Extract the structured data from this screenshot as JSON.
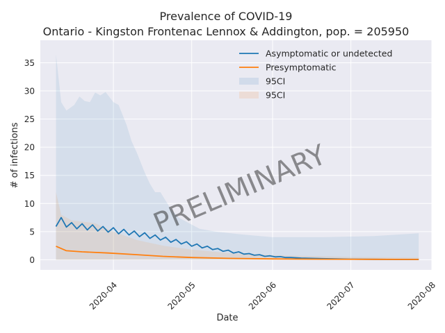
{
  "chart_data": {
    "type": "line",
    "title": "Prevalence of COVID-19",
    "subtitle": "Ontario - Kingston Frontenac Lennox & Addington, pop. = 205950",
    "xlabel": "Date",
    "ylabel": "# of infections",
    "watermark": "PRELIMINARY",
    "grid": true,
    "legend_position": "top-right",
    "x_range": [
      "2020-03-04",
      "2020-08-01"
    ],
    "y_range": [
      -1.8,
      39
    ],
    "x_ticks": [
      "2020-04-01",
      "2020-05-01",
      "2020-06-01",
      "2020-07-01",
      "2020-08-01"
    ],
    "x_tick_labels": [
      "2020-04",
      "2020-05",
      "2020-06",
      "2020-07",
      "2020-08"
    ],
    "y_ticks": [
      0,
      5,
      10,
      15,
      20,
      25,
      30,
      35
    ],
    "legend": [
      {
        "label": "Asymptomatic or undetected",
        "kind": "line",
        "color": "#1f77b4"
      },
      {
        "label": "Presymptomatic",
        "kind": "line",
        "color": "#ff7f0e"
      },
      {
        "label": "95CI",
        "kind": "band",
        "color": "#1f77b4"
      },
      {
        "label": "95CI",
        "kind": "band",
        "color": "#ff7f0e"
      }
    ],
    "series": [
      {
        "name": "Asymptomatic or undetected",
        "color": "#1f77b4",
        "points": [
          [
            "2020-03-10",
            5.9
          ],
          [
            "2020-03-12",
            7.5
          ],
          [
            "2020-03-14",
            5.8
          ],
          [
            "2020-03-16",
            6.6
          ],
          [
            "2020-03-18",
            5.5
          ],
          [
            "2020-03-20",
            6.4
          ],
          [
            "2020-03-22",
            5.3
          ],
          [
            "2020-03-24",
            6.2
          ],
          [
            "2020-03-26",
            5.1
          ],
          [
            "2020-03-28",
            5.9
          ],
          [
            "2020-03-30",
            4.9
          ],
          [
            "2020-04-01",
            5.7
          ],
          [
            "2020-04-03",
            4.6
          ],
          [
            "2020-04-05",
            5.4
          ],
          [
            "2020-04-07",
            4.4
          ],
          [
            "2020-04-09",
            5.1
          ],
          [
            "2020-04-11",
            4.1
          ],
          [
            "2020-04-13",
            4.8
          ],
          [
            "2020-04-15",
            3.8
          ],
          [
            "2020-04-17",
            4.4
          ],
          [
            "2020-04-19",
            3.5
          ],
          [
            "2020-04-21",
            4.0
          ],
          [
            "2020-04-23",
            3.1
          ],
          [
            "2020-04-25",
            3.6
          ],
          [
            "2020-04-27",
            2.8
          ],
          [
            "2020-04-29",
            3.2
          ],
          [
            "2020-05-01",
            2.4
          ],
          [
            "2020-05-03",
            2.8
          ],
          [
            "2020-05-05",
            2.1
          ],
          [
            "2020-05-07",
            2.4
          ],
          [
            "2020-05-09",
            1.8
          ],
          [
            "2020-05-11",
            2.0
          ],
          [
            "2020-05-13",
            1.5
          ],
          [
            "2020-05-15",
            1.7
          ],
          [
            "2020-05-17",
            1.2
          ],
          [
            "2020-05-19",
            1.4
          ],
          [
            "2020-05-21",
            1.0
          ],
          [
            "2020-05-23",
            1.1
          ],
          [
            "2020-05-25",
            0.8
          ],
          [
            "2020-05-27",
            0.9
          ],
          [
            "2020-05-29",
            0.6
          ],
          [
            "2020-05-31",
            0.7
          ],
          [
            "2020-06-02",
            0.5
          ],
          [
            "2020-06-04",
            0.55
          ],
          [
            "2020-06-06",
            0.4
          ],
          [
            "2020-06-08",
            0.4
          ],
          [
            "2020-06-12",
            0.3
          ],
          [
            "2020-06-16",
            0.25
          ],
          [
            "2020-06-20",
            0.2
          ],
          [
            "2020-06-25",
            0.15
          ],
          [
            "2020-07-01",
            0.1
          ],
          [
            "2020-07-10",
            0.07
          ],
          [
            "2020-07-20",
            0.05
          ],
          [
            "2020-07-27",
            0.05
          ]
        ]
      },
      {
        "name": "Presymptomatic",
        "color": "#ff7f0e",
        "points": [
          [
            "2020-03-10",
            2.4
          ],
          [
            "2020-03-14",
            1.6
          ],
          [
            "2020-03-20",
            1.4
          ],
          [
            "2020-03-30",
            1.2
          ],
          [
            "2020-04-10",
            0.9
          ],
          [
            "2020-04-20",
            0.6
          ],
          [
            "2020-05-01",
            0.4
          ],
          [
            "2020-05-15",
            0.25
          ],
          [
            "2020-06-01",
            0.15
          ],
          [
            "2020-06-20",
            0.1
          ],
          [
            "2020-07-10",
            0.07
          ],
          [
            "2020-07-27",
            0.05
          ]
        ]
      }
    ],
    "bands": [
      {
        "name": "95CI",
        "color": "#1f77b4",
        "upper": [
          [
            "2020-03-10",
            36.5
          ],
          [
            "2020-03-12",
            28.0
          ],
          [
            "2020-03-14",
            26.5
          ],
          [
            "2020-03-17",
            27.5
          ],
          [
            "2020-03-19",
            29.0
          ],
          [
            "2020-03-21",
            28.2
          ],
          [
            "2020-03-23",
            28.0
          ],
          [
            "2020-03-25",
            29.7
          ],
          [
            "2020-03-27",
            29.2
          ],
          [
            "2020-03-29",
            29.8
          ],
          [
            "2020-04-01",
            28.0
          ],
          [
            "2020-04-03",
            27.5
          ],
          [
            "2020-04-06",
            24.0
          ],
          [
            "2020-04-08",
            21.0
          ],
          [
            "2020-04-10",
            19.0
          ],
          [
            "2020-04-13",
            15.5
          ],
          [
            "2020-04-15",
            13.5
          ],
          [
            "2020-04-17",
            12.0
          ],
          [
            "2020-04-19",
            12.0
          ],
          [
            "2020-04-21",
            10.5
          ],
          [
            "2020-04-23",
            9.0
          ],
          [
            "2020-04-26",
            7.5
          ],
          [
            "2020-04-30",
            6.5
          ],
          [
            "2020-05-04",
            5.5
          ],
          [
            "2020-05-10",
            5.0
          ],
          [
            "2020-05-20",
            4.5
          ],
          [
            "2020-06-01",
            4.0
          ],
          [
            "2020-06-20",
            4.0
          ],
          [
            "2020-07-10",
            4.2
          ],
          [
            "2020-07-27",
            4.7
          ]
        ],
        "lower": [
          [
            "2020-03-10",
            0.0
          ],
          [
            "2020-07-27",
            0.0
          ]
        ]
      },
      {
        "name": "95CI",
        "color": "#ff7f0e",
        "upper": [
          [
            "2020-03-10",
            12.0
          ],
          [
            "2020-03-12",
            8.0
          ],
          [
            "2020-03-16",
            7.0
          ],
          [
            "2020-03-25",
            6.5
          ],
          [
            "2020-04-01",
            5.0
          ],
          [
            "2020-04-10",
            3.5
          ],
          [
            "2020-04-20",
            2.5
          ],
          [
            "2020-05-01",
            1.8
          ],
          [
            "2020-05-15",
            1.2
          ],
          [
            "2020-06-01",
            0.8
          ],
          [
            "2020-07-01",
            0.5
          ],
          [
            "2020-07-27",
            0.4
          ]
        ],
        "lower": [
          [
            "2020-03-10",
            0.0
          ],
          [
            "2020-07-27",
            0.0
          ]
        ]
      }
    ]
  }
}
